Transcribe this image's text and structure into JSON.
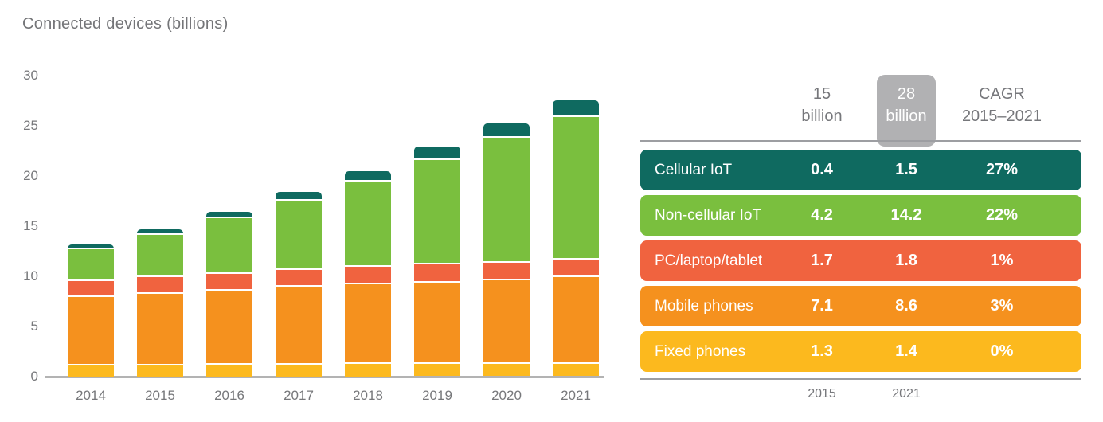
{
  "page": {
    "title": "Connected devices (billions)"
  },
  "chart_data": {
    "type": "bar",
    "stacked": true,
    "title": "Connected devices (billions)",
    "xlabel": "",
    "ylabel": "",
    "ylim": [
      0,
      30
    ],
    "yticks": [
      0,
      5,
      10,
      15,
      20,
      25,
      30
    ],
    "grid": false,
    "legend_position": "none (series identified by colors in table at right)",
    "categories": [
      "2014",
      "2015",
      "2016",
      "2017",
      "2018",
      "2019",
      "2020",
      "2021"
    ],
    "series": [
      {
        "name": "Fixed phones",
        "color": "#fcb91e",
        "values": [
          1.3,
          1.3,
          1.3,
          1.3,
          1.4,
          1.4,
          1.4,
          1.4
        ]
      },
      {
        "name": "Mobile phones",
        "color": "#f5911e",
        "values": [
          6.8,
          7.1,
          7.4,
          7.8,
          8.0,
          8.1,
          8.3,
          8.6
        ]
      },
      {
        "name": "PC/laptop/tablet",
        "color": "#f0633f",
        "values": [
          1.6,
          1.7,
          1.7,
          1.7,
          1.7,
          1.8,
          1.8,
          1.8
        ]
      },
      {
        "name": "Non-cellular IoT",
        "color": "#7abf3e",
        "values": [
          3.2,
          4.2,
          5.5,
          6.9,
          8.5,
          10.4,
          12.4,
          14.2
        ]
      },
      {
        "name": "Cellular IoT",
        "color": "#0f6a60",
        "values": [
          0.3,
          0.4,
          0.5,
          0.7,
          0.9,
          1.2,
          1.3,
          1.5
        ]
      }
    ]
  },
  "table": {
    "header": {
      "col_2015_line1": "15",
      "col_2015_line2": "billion",
      "col_2021_line1": "28",
      "col_2021_line2": "billion",
      "col_cagr_line1": "CAGR",
      "col_cagr_line2": "2015–2021"
    },
    "rows": [
      {
        "label": "Cellular IoT",
        "value_2015": "0.4",
        "value_2021": "1.5",
        "cagr": "27%",
        "color": "#0f6a60"
      },
      {
        "label": "Non-cellular IoT",
        "value_2015": "4.2",
        "value_2021": "14.2",
        "cagr": "22%",
        "color": "#7abf3e"
      },
      {
        "label": "PC/laptop/tablet",
        "value_2015": "1.7",
        "value_2021": "1.8",
        "cagr": "1%",
        "color": "#f0633f"
      },
      {
        "label": "Mobile phones",
        "value_2015": "7.1",
        "value_2021": "8.6",
        "cagr": "3%",
        "color": "#f5911e"
      },
      {
        "label": "Fixed phones",
        "value_2015": "1.3",
        "value_2021": "1.4",
        "cagr": "0%",
        "color": "#fcb91e"
      }
    ],
    "footer": {
      "year_left": "2015",
      "year_right": "2021"
    }
  },
  "colors": {
    "teal": "#0f6a60",
    "green": "#7abf3e",
    "coral": "#f0633f",
    "orange": "#f5911e",
    "yellow": "#fcb91e",
    "gray_text": "#76777b",
    "axis_line": "#b3b3b3",
    "rule_line": "#9d9ea2",
    "header_highlight_box": "#b1b1b3",
    "background": "#ffffff"
  }
}
